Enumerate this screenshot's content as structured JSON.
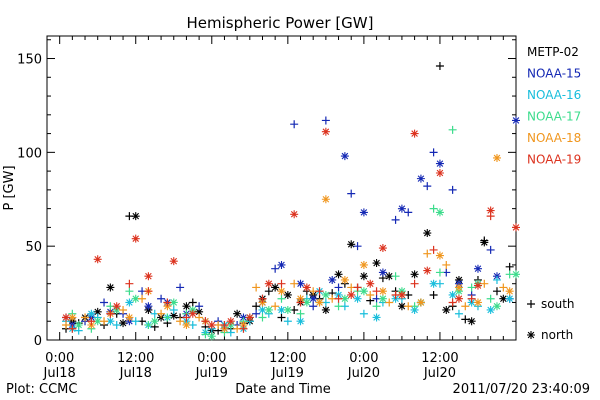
{
  "chart_data": {
    "type": "scatter",
    "title": "Hemispheric Power [GW]",
    "xlabel": "Date and Time",
    "ylabel": "P [GW]",
    "x_unit": "hours from 2011-07-18 00:00 UT",
    "xlim": [
      -2,
      72
    ],
    "ylim": [
      0,
      162
    ],
    "x_ticks": [
      {
        "x": 0,
        "label": "0:00",
        "sublabel": "Jul18"
      },
      {
        "x": 12,
        "label": "12:00",
        "sublabel": "Jul18"
      },
      {
        "x": 24,
        "label": "0:00",
        "sublabel": "Jul19"
      },
      {
        "x": 36,
        "label": "12:00",
        "sublabel": "Jul19"
      },
      {
        "x": 48,
        "label": "0:00",
        "sublabel": "Jul20"
      },
      {
        "x": 60,
        "label": "12:00",
        "sublabel": "Jul20"
      }
    ],
    "y_ticks": [
      0,
      50,
      100,
      150
    ],
    "grid": false,
    "legend_position": "right",
    "marker_legend": [
      {
        "marker": "+",
        "label": "south"
      },
      {
        "marker": "*",
        "label": "north"
      }
    ],
    "series": [
      {
        "name": "METP-02",
        "color": "#000000",
        "south": [
          [
            1,
            6
          ],
          [
            3,
            9
          ],
          [
            5,
            12
          ],
          [
            7,
            8
          ],
          [
            9,
            14
          ],
          [
            11,
            66
          ],
          [
            13,
            10
          ],
          [
            15,
            7
          ],
          [
            17,
            9
          ],
          [
            19,
            12
          ],
          [
            21,
            20
          ],
          [
            23,
            7
          ],
          [
            25,
            5
          ],
          [
            27,
            6
          ],
          [
            29,
            9
          ],
          [
            31,
            18
          ],
          [
            33,
            26
          ],
          [
            35,
            12
          ],
          [
            37,
            16
          ],
          [
            39,
            26
          ],
          [
            41,
            22
          ],
          [
            43,
            25
          ],
          [
            45,
            30
          ],
          [
            47,
            28
          ],
          [
            49,
            21
          ],
          [
            51,
            33
          ],
          [
            53,
            26
          ],
          [
            55,
            24
          ],
          [
            57,
            20
          ],
          [
            59,
            24
          ],
          [
            60,
            146
          ],
          [
            62,
            18
          ],
          [
            64,
            11
          ],
          [
            66,
            32
          ],
          [
            67,
            53
          ],
          [
            69,
            26
          ],
          [
            71,
            39
          ]
        ],
        "north": [
          [
            2,
            10
          ],
          [
            4,
            12
          ],
          [
            6,
            15
          ],
          [
            8,
            28
          ],
          [
            10,
            9
          ],
          [
            12,
            66
          ],
          [
            14,
            16
          ],
          [
            16,
            12
          ],
          [
            18,
            13
          ],
          [
            20,
            18
          ],
          [
            22,
            15
          ],
          [
            24,
            5
          ],
          [
            26,
            8
          ],
          [
            28,
            14
          ],
          [
            30,
            10
          ],
          [
            32,
            22
          ],
          [
            34,
            28
          ],
          [
            36,
            24
          ],
          [
            38,
            20
          ],
          [
            40,
            24
          ],
          [
            42,
            16
          ],
          [
            44,
            35
          ],
          [
            46,
            51
          ],
          [
            48,
            34
          ],
          [
            50,
            41
          ],
          [
            52,
            34
          ],
          [
            54,
            18
          ],
          [
            56,
            35
          ],
          [
            58,
            57
          ],
          [
            61,
            16
          ],
          [
            63,
            32
          ],
          [
            65,
            10
          ],
          [
            67,
            52
          ],
          [
            70,
            22
          ]
        ]
      },
      {
        "name": "NOAA-15",
        "color": "#1428b4",
        "south": [
          [
            1,
            12
          ],
          [
            4,
            10
          ],
          [
            7,
            20
          ],
          [
            10,
            14
          ],
          [
            13,
            26
          ],
          [
            16,
            22
          ],
          [
            19,
            28
          ],
          [
            22,
            18
          ],
          [
            25,
            10
          ],
          [
            28,
            8
          ],
          [
            31,
            14
          ],
          [
            34,
            38
          ],
          [
            37,
            115
          ],
          [
            40,
            18
          ],
          [
            42,
            117
          ],
          [
            44,
            28
          ],
          [
            46,
            78
          ],
          [
            47,
            50
          ],
          [
            50,
            22
          ],
          [
            53,
            64
          ],
          [
            55,
            68
          ],
          [
            58,
            82
          ],
          [
            59,
            100
          ],
          [
            61,
            36
          ],
          [
            62,
            80
          ],
          [
            65,
            24
          ],
          [
            68,
            48
          ],
          [
            71,
            22
          ]
        ],
        "north": [
          [
            2,
            8
          ],
          [
            5,
            12
          ],
          [
            8,
            15
          ],
          [
            11,
            10
          ],
          [
            14,
            18
          ],
          [
            17,
            20
          ],
          [
            20,
            14
          ],
          [
            23,
            10
          ],
          [
            26,
            6
          ],
          [
            29,
            12
          ],
          [
            32,
            20
          ],
          [
            35,
            40
          ],
          [
            38,
            30
          ],
          [
            40,
            22
          ],
          [
            43,
            32
          ],
          [
            45,
            98
          ],
          [
            48,
            68
          ],
          [
            51,
            36
          ],
          [
            54,
            70
          ],
          [
            57,
            86
          ],
          [
            60,
            94
          ],
          [
            63,
            30
          ],
          [
            66,
            38
          ],
          [
            69,
            34
          ],
          [
            72,
            117
          ]
        ]
      },
      {
        "name": "NOAA-16",
        "color": "#19bedc",
        "south": [
          [
            1,
            10
          ],
          [
            3,
            5
          ],
          [
            6,
            12
          ],
          [
            9,
            8
          ],
          [
            12,
            10
          ],
          [
            15,
            14
          ],
          [
            18,
            16
          ],
          [
            21,
            8
          ],
          [
            24,
            6
          ],
          [
            27,
            4
          ],
          [
            30,
            10
          ],
          [
            33,
            14
          ],
          [
            36,
            10
          ],
          [
            39,
            22
          ],
          [
            42,
            20
          ],
          [
            45,
            18
          ],
          [
            48,
            14
          ],
          [
            51,
            20
          ],
          [
            54,
            22
          ],
          [
            57,
            20
          ],
          [
            60,
            30
          ],
          [
            63,
            14
          ],
          [
            66,
            18
          ],
          [
            69,
            32
          ]
        ],
        "north": [
          [
            2,
            6
          ],
          [
            5,
            14
          ],
          [
            8,
            10
          ],
          [
            11,
            20
          ],
          [
            14,
            8
          ],
          [
            17,
            12
          ],
          [
            20,
            10
          ],
          [
            23,
            4
          ],
          [
            26,
            8
          ],
          [
            29,
            6
          ],
          [
            32,
            16
          ],
          [
            35,
            16
          ],
          [
            38,
            10
          ],
          [
            41,
            26
          ],
          [
            44,
            24
          ],
          [
            47,
            22
          ],
          [
            50,
            12
          ],
          [
            53,
            22
          ],
          [
            56,
            16
          ],
          [
            59,
            30
          ],
          [
            62,
            24
          ],
          [
            65,
            20
          ],
          [
            68,
            16
          ],
          [
            71,
            22
          ]
        ]
      },
      {
        "name": "NOAA-17",
        "color": "#3cdc8c",
        "south": [
          [
            2,
            14
          ],
          [
            5,
            6
          ],
          [
            8,
            18
          ],
          [
            11,
            26
          ],
          [
            14,
            8
          ],
          [
            17,
            12
          ],
          [
            20,
            14
          ],
          [
            23,
            3
          ],
          [
            26,
            4
          ],
          [
            29,
            10
          ],
          [
            32,
            12
          ],
          [
            35,
            22
          ],
          [
            38,
            14
          ],
          [
            41,
            20
          ],
          [
            44,
            18
          ],
          [
            47,
            26
          ],
          [
            50,
            18
          ],
          [
            53,
            34
          ],
          [
            56,
            18
          ],
          [
            59,
            70
          ],
          [
            60,
            36
          ],
          [
            62,
            112
          ],
          [
            65,
            28
          ],
          [
            68,
            22
          ],
          [
            71,
            35
          ]
        ],
        "north": [
          [
            3,
            8
          ],
          [
            6,
            10
          ],
          [
            9,
            16
          ],
          [
            12,
            22
          ],
          [
            15,
            10
          ],
          [
            18,
            20
          ],
          [
            21,
            16
          ],
          [
            24,
            2
          ],
          [
            27,
            8
          ],
          [
            30,
            12
          ],
          [
            33,
            16
          ],
          [
            36,
            16
          ],
          [
            39,
            20
          ],
          [
            42,
            24
          ],
          [
            45,
            22
          ],
          [
            48,
            26
          ],
          [
            51,
            22
          ],
          [
            54,
            26
          ],
          [
            57,
            20
          ],
          [
            60,
            68
          ],
          [
            63,
            26
          ],
          [
            66,
            30
          ],
          [
            69,
            18
          ],
          [
            72,
            35
          ]
        ]
      },
      {
        "name": "NOAA-18",
        "color": "#f0961e",
        "south": [
          [
            1,
            8
          ],
          [
            4,
            12
          ],
          [
            7,
            10
          ],
          [
            10,
            16
          ],
          [
            13,
            22
          ],
          [
            16,
            14
          ],
          [
            19,
            10
          ],
          [
            22,
            12
          ],
          [
            25,
            8
          ],
          [
            28,
            6
          ],
          [
            31,
            28
          ],
          [
            34,
            18
          ],
          [
            37,
            30
          ],
          [
            40,
            26
          ],
          [
            43,
            22
          ],
          [
            46,
            28
          ],
          [
            49,
            24
          ],
          [
            52,
            20
          ],
          [
            55,
            18
          ],
          [
            58,
            46
          ],
          [
            61,
            40
          ],
          [
            64,
            18
          ],
          [
            67,
            30
          ],
          [
            70,
            28
          ]
        ],
        "north": [
          [
            2,
            12
          ],
          [
            5,
            8
          ],
          [
            8,
            14
          ],
          [
            11,
            12
          ],
          [
            14,
            26
          ],
          [
            17,
            18
          ],
          [
            20,
            8
          ],
          [
            23,
            10
          ],
          [
            26,
            6
          ],
          [
            29,
            8
          ],
          [
            32,
            20
          ],
          [
            35,
            26
          ],
          [
            38,
            22
          ],
          [
            41,
            20
          ],
          [
            42,
            75
          ],
          [
            45,
            32
          ],
          [
            48,
            40
          ],
          [
            51,
            26
          ],
          [
            54,
            24
          ],
          [
            57,
            20
          ],
          [
            60,
            45
          ],
          [
            63,
            28
          ],
          [
            66,
            20
          ],
          [
            69,
            97
          ],
          [
            71,
            26
          ]
        ]
      },
      {
        "name": "NOAA-19",
        "color": "#dc321e",
        "south": [
          [
            2,
            6
          ],
          [
            5,
            10
          ],
          [
            8,
            14
          ],
          [
            11,
            30
          ],
          [
            14,
            26
          ],
          [
            17,
            20
          ],
          [
            20,
            12
          ],
          [
            23,
            10
          ],
          [
            26,
            8
          ],
          [
            29,
            6
          ],
          [
            32,
            22
          ],
          [
            35,
            30
          ],
          [
            38,
            20
          ],
          [
            41,
            26
          ],
          [
            44,
            22
          ],
          [
            47,
            28
          ],
          [
            50,
            26
          ],
          [
            53,
            24
          ],
          [
            56,
            30
          ],
          [
            59,
            48
          ],
          [
            62,
            20
          ],
          [
            65,
            22
          ],
          [
            68,
            66
          ]
        ],
        "north": [
          [
            1,
            12
          ],
          [
            6,
            43
          ],
          [
            9,
            18
          ],
          [
            12,
            54
          ],
          [
            14,
            34
          ],
          [
            18,
            42
          ],
          [
            21,
            14
          ],
          [
            24,
            8
          ],
          [
            27,
            10
          ],
          [
            30,
            12
          ],
          [
            33,
            30
          ],
          [
            37,
            67
          ],
          [
            39,
            28
          ],
          [
            42,
            111
          ],
          [
            46,
            24
          ],
          [
            49,
            30
          ],
          [
            51,
            49
          ],
          [
            54,
            24
          ],
          [
            56,
            110
          ],
          [
            58,
            37
          ],
          [
            60,
            89
          ],
          [
            63,
            22
          ],
          [
            66,
            29
          ],
          [
            68,
            69
          ],
          [
            72,
            60
          ]
        ]
      }
    ]
  },
  "footer": {
    "plot_credit": "Plot: CCMC",
    "timestamp": "2011/07/20 23:40:09"
  }
}
